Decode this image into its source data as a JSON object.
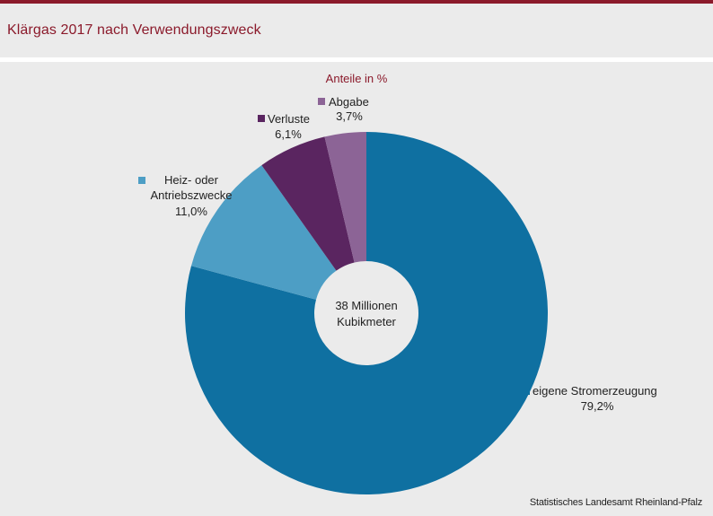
{
  "header": {
    "title": "Klärgas 2017 nach Verwendungszweck"
  },
  "footer": {
    "source": "Statistisches Landesamt Rheinland-Pfalz"
  },
  "chart_data": {
    "type": "pie",
    "variant": "donut",
    "subtitle": "Anteile in %",
    "center_label": [
      "38 Millionen",
      "Kubikmeter"
    ],
    "legend": "labels beside slices",
    "slices": [
      {
        "name": "eigene Stromerzeugung",
        "label_lines": [
          "eigene Stromerzeugung"
        ],
        "value": 79.2,
        "value_label": "79,2%",
        "color": "#0f70a1"
      },
      {
        "name": "Heiz- oder Antriebszwecke",
        "label_lines": [
          "Heiz- oder",
          "Antriebszwecke"
        ],
        "value": 11.0,
        "value_label": "11,0%",
        "color": "#4d9ec5"
      },
      {
        "name": "Verluste",
        "label_lines": [
          "Verluste"
        ],
        "value": 6.1,
        "value_label": "6,1%",
        "color": "#5a2560"
      },
      {
        "name": "Abgabe",
        "label_lines": [
          "Abgabe"
        ],
        "value": 3.7,
        "value_label": "3,7%",
        "color": "#8c6496"
      }
    ]
  }
}
